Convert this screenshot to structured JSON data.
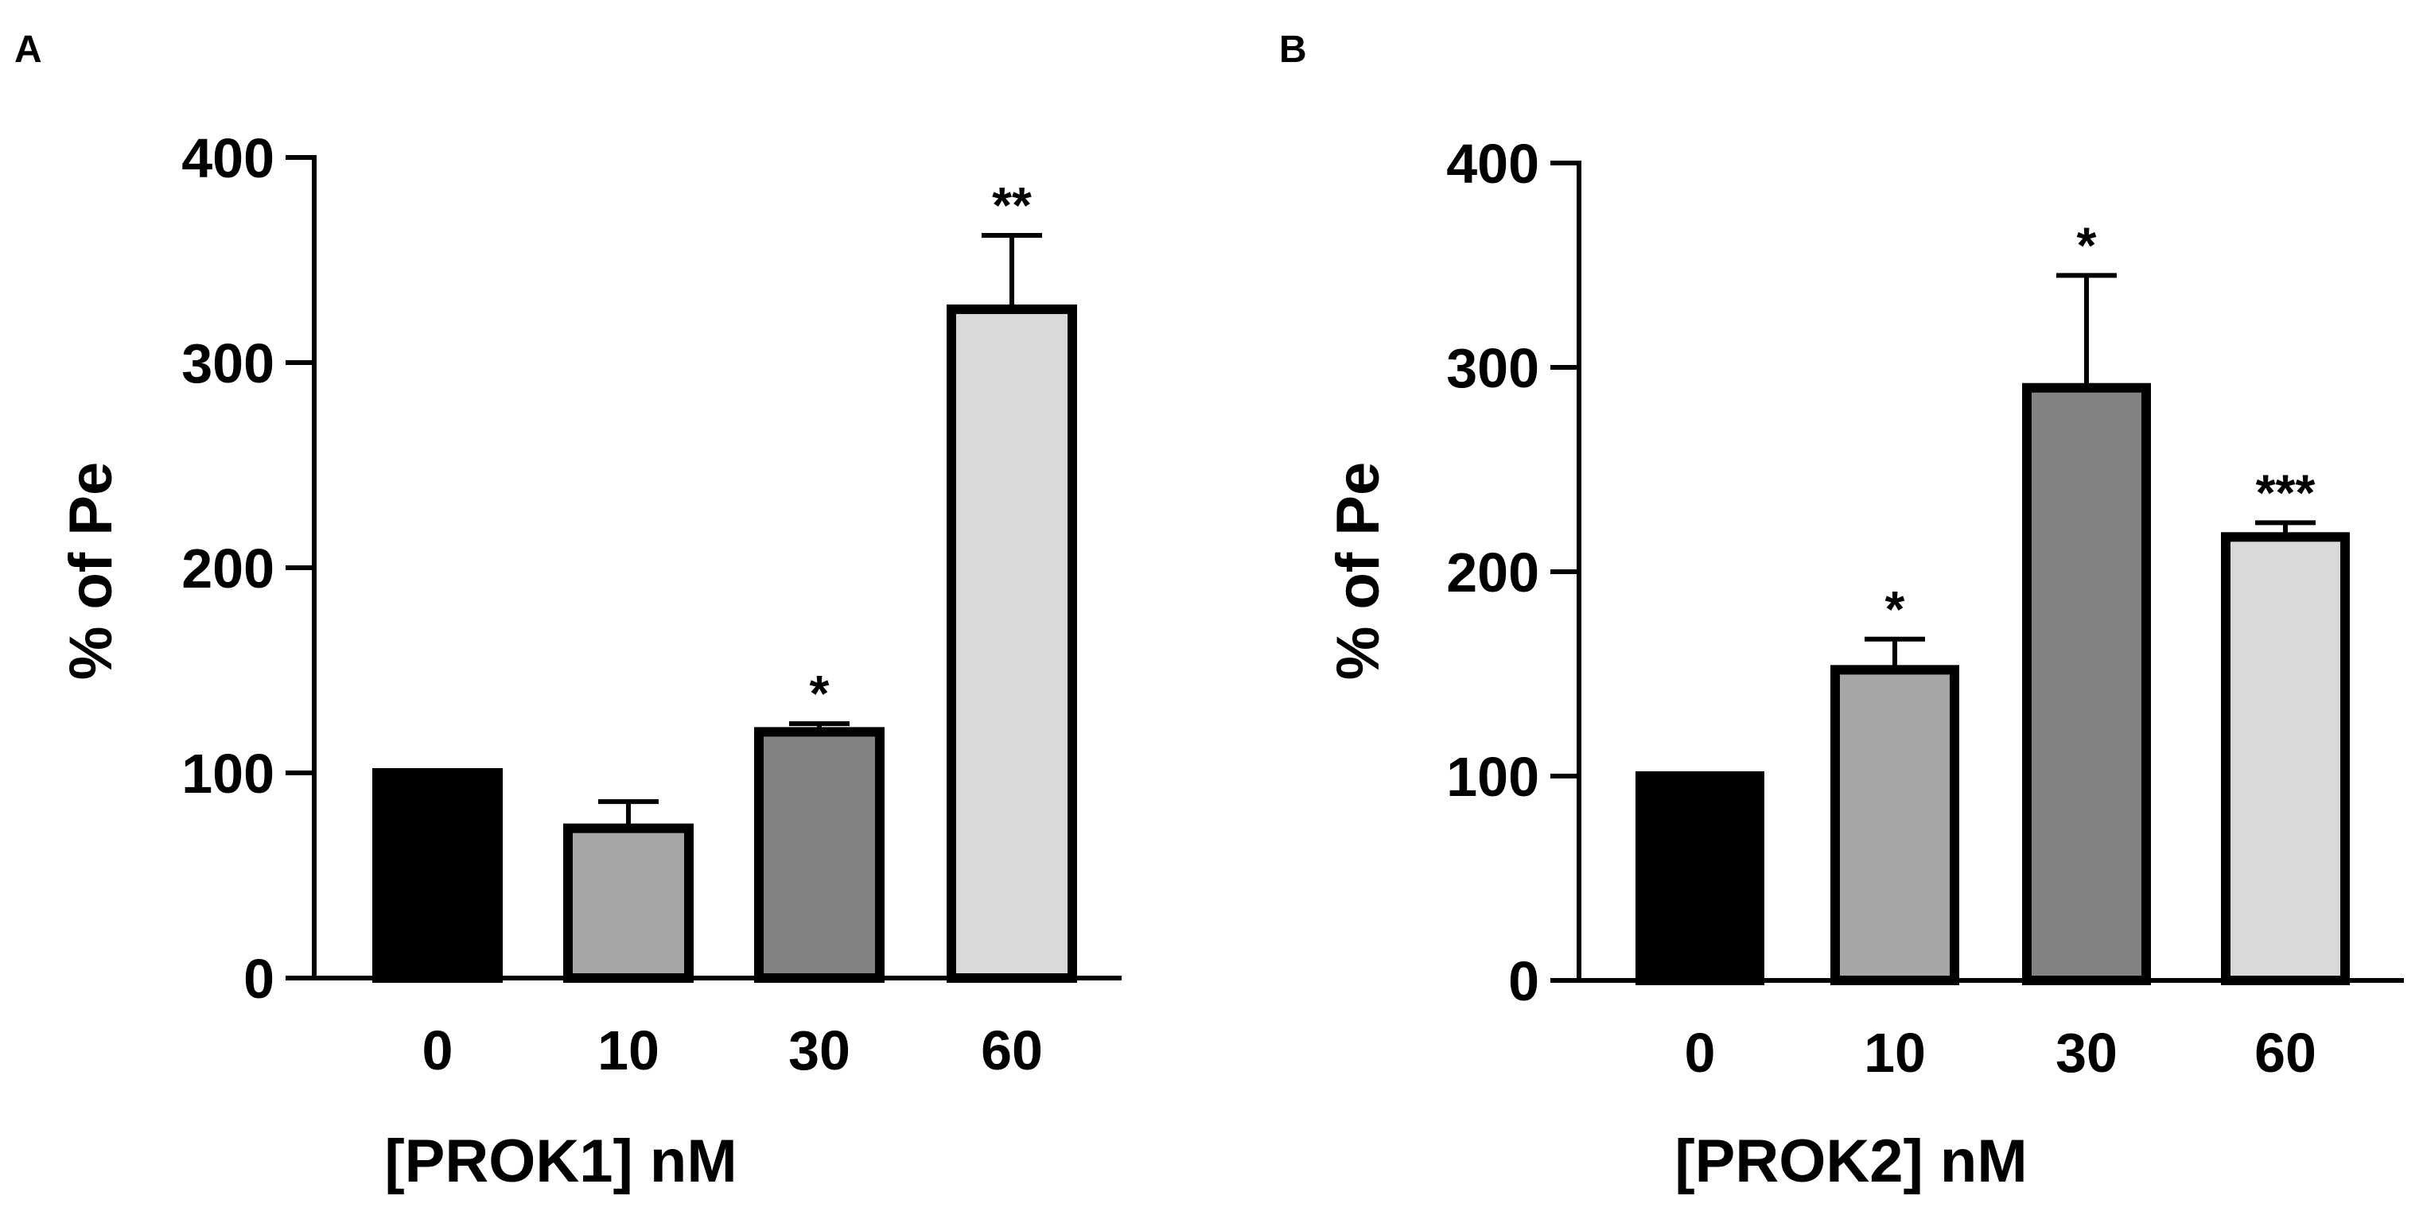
{
  "chart_data": [
    {
      "panel": "A",
      "type": "bar",
      "categories": [
        "0",
        "10",
        "30",
        "60"
      ],
      "values": [
        100,
        73,
        120,
        326
      ],
      "errors": [
        1,
        13,
        4,
        36
      ],
      "significance": [
        "",
        "",
        "*",
        "**"
      ],
      "bar_colors": [
        "#000000",
        "#a6a6a8",
        "#838383",
        "#d9d9d9"
      ],
      "xlabel": "[PROK1] nM",
      "ylabel": "% of Pe",
      "ylim": [
        0,
        400
      ],
      "yticks": [
        "0",
        "100",
        "200",
        "300",
        "400"
      ]
    },
    {
      "panel": "B",
      "type": "bar",
      "categories": [
        "0",
        "10",
        "30",
        "60"
      ],
      "values": [
        100,
        152,
        290,
        217
      ],
      "errors": [
        1,
        15,
        55,
        7
      ],
      "significance": [
        "",
        "*",
        "*",
        "***"
      ],
      "bar_colors": [
        "#000000",
        "#a6a6a8",
        "#838383",
        "#d9d9d9"
      ],
      "xlabel": "[PROK2] nM",
      "ylabel": "% of Pe",
      "ylim": [
        0,
        400
      ],
      "yticks": [
        "0",
        "100",
        "200",
        "300",
        "400"
      ]
    }
  ]
}
